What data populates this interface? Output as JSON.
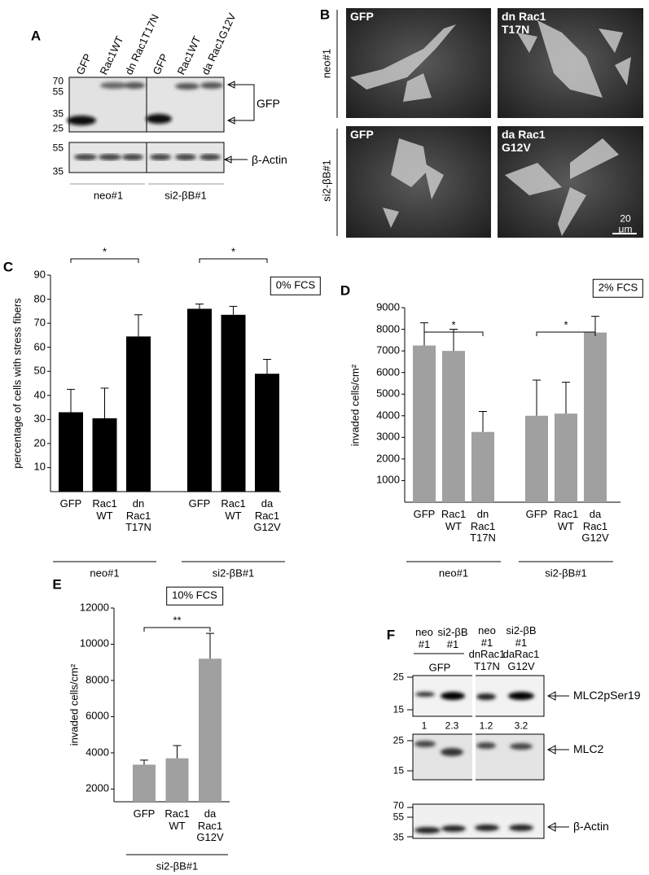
{
  "panel_a": {
    "label": "A",
    "lanes": [
      "GFP",
      "Rac1WT",
      "dn Rac1T17N",
      "GFP",
      "Rac1WT",
      "da Rac1G12V"
    ],
    "mw_top": [
      "70",
      "55",
      "35",
      "25"
    ],
    "mw_actin": [
      "55",
      "35"
    ],
    "bands": [
      "GFP",
      "β-Actin"
    ],
    "groups": [
      "neo#1",
      "si2-βB#1"
    ]
  },
  "panel_b": {
    "label": "B",
    "rows": [
      "neo#1",
      "si2-βB#1"
    ],
    "images": [
      "GFP",
      "dn Rac1\nT17N",
      "GFP",
      "da Rac1\nG12V"
    ],
    "scale_bar": "20 μm"
  },
  "panel_f": {
    "label": "F",
    "lanes": [
      "neo\n#1",
      "si2-βB\n#1",
      "neo\n#1\ndnRac1\nT17N",
      "si2-βB\n#1\ndaRac1\nG12V"
    ],
    "gfp_label": "GFP",
    "mw": [
      "25",
      "15",
      "25",
      "15",
      "70",
      "55",
      "35"
    ],
    "bands": [
      "MLC2pSer19",
      "MLC2",
      "β-Actin"
    ],
    "ratios": [
      "1",
      "2.3",
      "1.2",
      "3.2"
    ]
  },
  "chart_data": [
    {
      "type": "bar",
      "label": "C",
      "ylabel": "percentage of cells with stress fibers",
      "condition": "0% FCS",
      "color": "#000000",
      "categories": [
        "GFP",
        "Rac1\nWT",
        "dn\nRac1\nT17N",
        "GFP",
        "Rac1\nWT",
        "da\nRac1\nG12V"
      ],
      "groups": [
        "neo#1",
        "si2-βB#1"
      ],
      "values": [
        33,
        30.5,
        64.5,
        76,
        73.5,
        49
      ],
      "errors": [
        9.5,
        12.5,
        9,
        2,
        3.5,
        6
      ],
      "annotations": [
        "*",
        "*"
      ],
      "ylim": [
        0,
        90
      ],
      "yticks": [
        10,
        20,
        30,
        40,
        50,
        60,
        70,
        80,
        90
      ]
    },
    {
      "type": "bar",
      "label": "D",
      "ylabel": "invaded cells/cm²",
      "condition": "2% FCS",
      "color": "#a0a0a0",
      "categories": [
        "GFP",
        "Rac1\nWT",
        "dn\nRac1\nT17N",
        "GFP",
        "Rac1\nWT",
        "da\nRac1\nG12V"
      ],
      "groups": [
        "neo#1",
        "si2-βB#1"
      ],
      "values": [
        7250,
        7000,
        3250,
        4000,
        4100,
        7850
      ],
      "errors": [
        1050,
        1000,
        950,
        1650,
        1450,
        750
      ],
      "annotations": [
        "*",
        "*"
      ],
      "ylim": [
        0,
        9000
      ],
      "yticks": [
        1000,
        2000,
        3000,
        4000,
        5000,
        6000,
        7000,
        8000,
        9000
      ]
    },
    {
      "type": "bar",
      "label": "E",
      "ylabel": "invaded cells/cm²",
      "condition": "10% FCS",
      "color": "#a0a0a0",
      "categories": [
        "GFP",
        "Rac1\nWT",
        "da\nRac1\nG12V"
      ],
      "groups": [
        "si2-βB#1"
      ],
      "values": [
        3350,
        3700,
        9200
      ],
      "errors": [
        250,
        700,
        1400
      ],
      "annotations": [
        "**"
      ],
      "ylim": [
        1300,
        12000
      ],
      "yticks": [
        2000,
        4000,
        6000,
        8000,
        10000,
        12000
      ]
    }
  ]
}
